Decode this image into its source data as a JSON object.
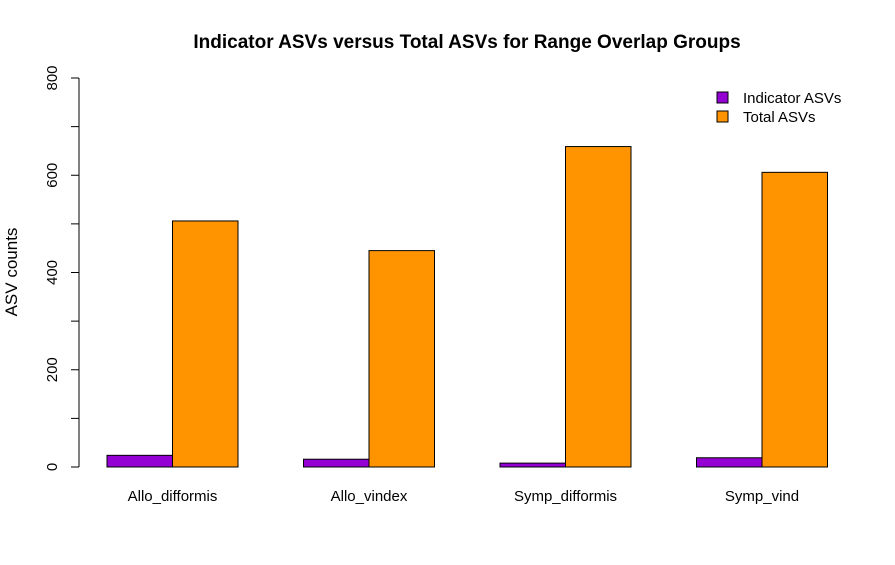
{
  "chart_data": {
    "type": "bar",
    "title": "Indicator ASVs versus Total ASVs for Range Overlap Groups",
    "xlabel": "",
    "ylabel": "ASV counts",
    "categories": [
      "Allo_difformis",
      "Allo_vindex",
      "Symp_difformis",
      "Symp_vind"
    ],
    "series": [
      {
        "name": "Indicator ASVs",
        "color": "#9400D3",
        "values": [
          24,
          16,
          8,
          19
        ]
      },
      {
        "name": "Total ASVs",
        "color": "#FF9400",
        "values": [
          506,
          445,
          659,
          606
        ]
      }
    ],
    "ylim": [
      0,
      800
    ],
    "yticks": [
      0,
      200,
      400,
      600,
      800
    ],
    "grid": false,
    "legend_position": "top-right"
  }
}
